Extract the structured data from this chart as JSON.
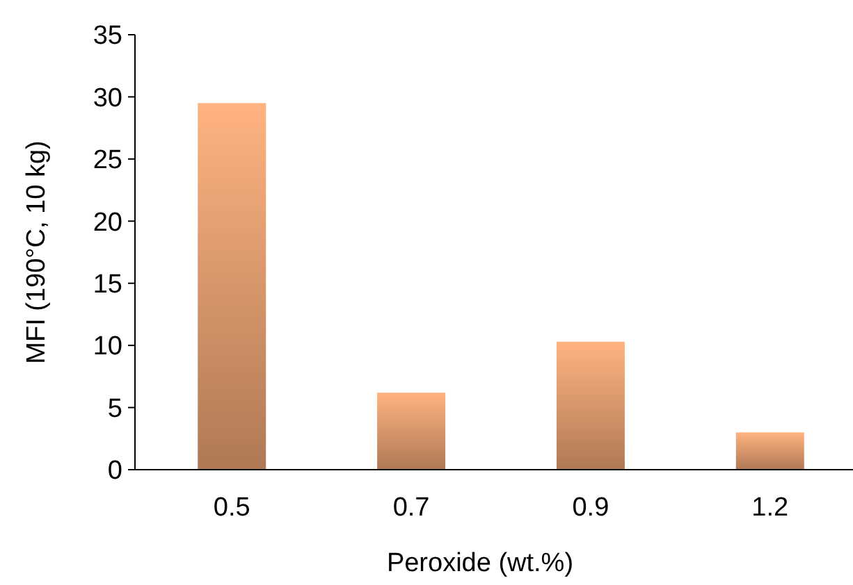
{
  "chart_data": {
    "type": "bar",
    "xlabel": "Peroxide (wt.%)",
    "ylabel": "MFI (190°C, 10 kg)",
    "categories": [
      "0.5",
      "0.7",
      "0.9",
      "1.2"
    ],
    "values": [
      29.5,
      6.2,
      10.3,
      3.0
    ],
    "color": "#d9966b",
    "ylim": [
      0,
      35
    ],
    "yticks": [
      0,
      5,
      10,
      15,
      20,
      25,
      30,
      35
    ]
  }
}
